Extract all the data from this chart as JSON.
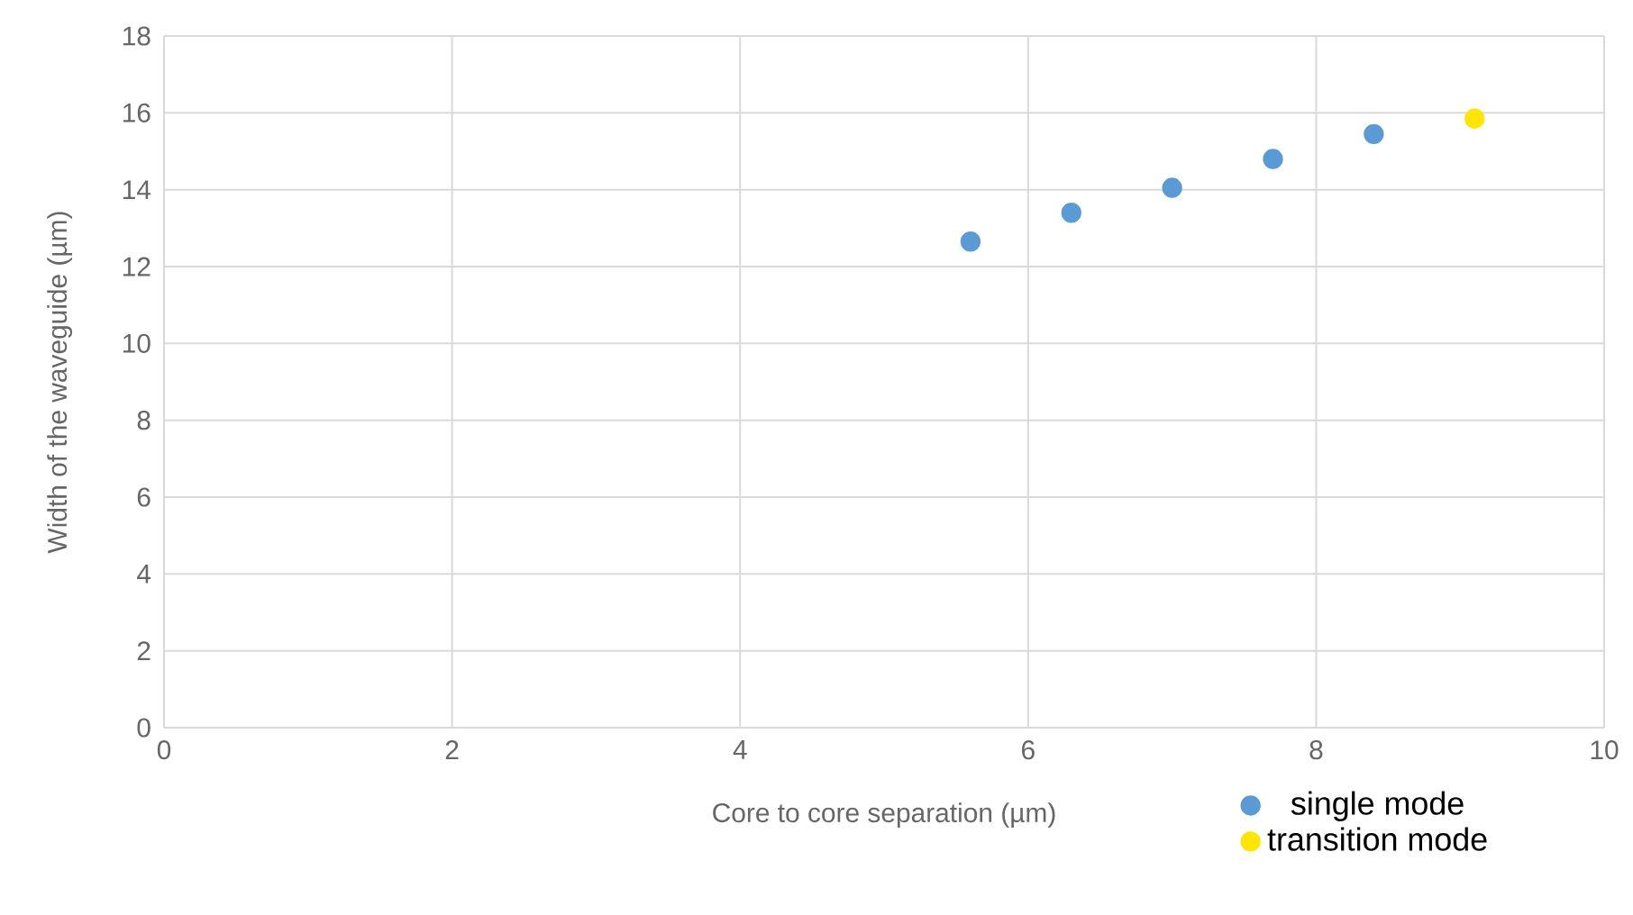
{
  "chart_data": {
    "type": "scatter",
    "xlabel": "Core to core separation (µm)",
    "ylabel": "Width of the waveguide (µm)",
    "series": [
      {
        "name": "single mode",
        "color": "#5b9bd5",
        "x": [
          5.6,
          6.3,
          7.0,
          7.7,
          8.4
        ],
        "values": [
          12.65,
          13.4,
          14.05,
          14.8,
          15.45
        ]
      },
      {
        "name": "transition mode",
        "color": "#ffe600",
        "x": [
          9.1
        ],
        "values": [
          15.85
        ]
      }
    ],
    "xlim": [
      0,
      10
    ],
    "xticks": [
      0,
      2,
      4,
      6,
      8,
      10
    ],
    "ylim": [
      0,
      18
    ],
    "yticks": [
      0,
      2,
      4,
      6,
      8,
      10,
      12,
      14,
      16,
      18
    ],
    "grid": true,
    "legend": "bottom right",
    "marker": "circle"
  }
}
